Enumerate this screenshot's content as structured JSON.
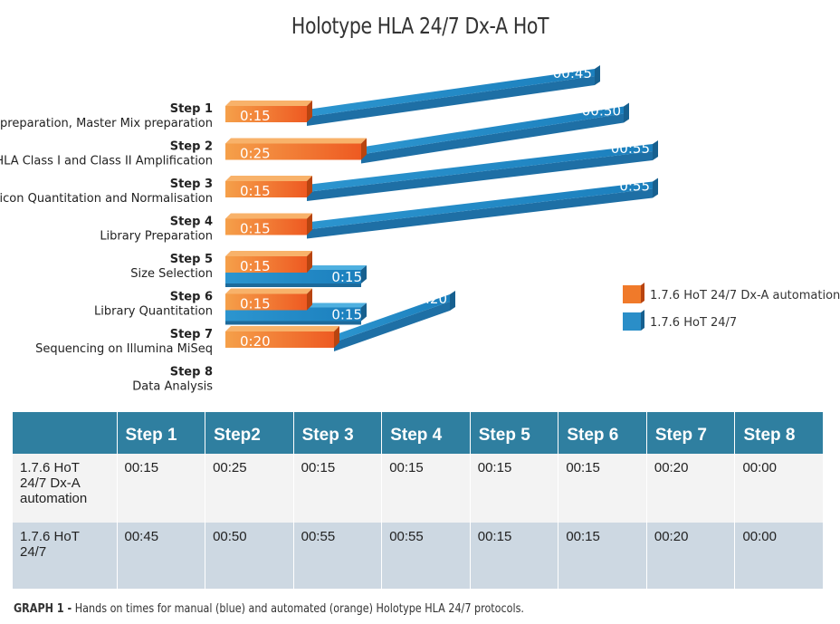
{
  "chart_data": {
    "type": "bar",
    "title": "Holotype HLA 24/7 Dx-A HoT",
    "steps": [
      {
        "name": "Step 1",
        "desc": "gDNA preparation, Master Mix preparation"
      },
      {
        "name": "Step 2",
        "desc": "HLA Class I and Class II Amplification"
      },
      {
        "name": "Step 3",
        "desc": "Amplicon Quantitation and Normalisation"
      },
      {
        "name": "Step 4",
        "desc": "Library Preparation"
      },
      {
        "name": "Step 5",
        "desc": "Size Selection"
      },
      {
        "name": "Step 6",
        "desc": "Library Quantitation"
      },
      {
        "name": "Step 7",
        "desc": "Sequencing on Illumina MiSeq"
      },
      {
        "name": "Step 8",
        "desc": "Data Analysis"
      }
    ],
    "series": [
      {
        "name": "1.7.6 HoT 24/7 Dx-A automation",
        "color": "#f07a2a",
        "values": [
          15,
          25,
          15,
          15,
          15,
          15,
          20,
          0
        ],
        "labels": [
          "0:15",
          "0:25",
          "0:15",
          "0:15",
          "0:15",
          "0:15",
          "0:20",
          ""
        ]
      },
      {
        "name": "1.7.6 HoT 24/7",
        "color": "#2a8ec8",
        "values": [
          45,
          50,
          55,
          55,
          15,
          15,
          20,
          0
        ],
        "labels": [
          "00:45",
          "00:50",
          "00:55",
          "0:55",
          "0:15",
          "0:15",
          "0:20",
          ""
        ]
      }
    ],
    "unit": "minutes",
    "legend_position": "right",
    "grid": false
  },
  "table": {
    "headers": [
      "",
      "Step 1",
      "Step2",
      "Step 3",
      "Step 4",
      "Step 5",
      "Step 6",
      "Step 7",
      "Step 8"
    ],
    "rows": [
      {
        "label": "1.7.6 HoT 24/7 Dx-A automation",
        "cells": [
          "00:15",
          "00:25",
          "00:15",
          "00:15",
          "00:15",
          "00:15",
          "00:20",
          "00:00"
        ]
      },
      {
        "label": "1.7.6 HoT 24/7",
        "cells": [
          "00:45",
          "00:50",
          "00:55",
          "00:55",
          "00:15",
          "00:15",
          "00:20",
          "00:00"
        ]
      }
    ]
  },
  "caption": {
    "prefix": "GRAPH 1 -",
    "text": " Hands on times for manual (blue) and automated (orange) Holotype HLA 24/7 protocols."
  }
}
